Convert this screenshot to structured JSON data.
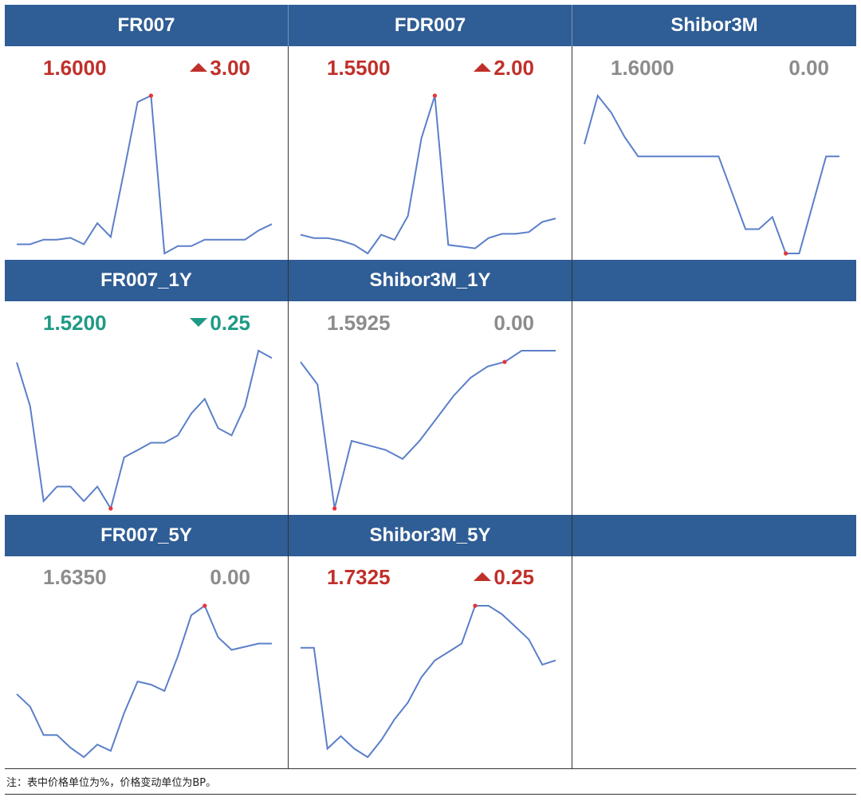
{
  "colors": {
    "header_bg": "#2f5d95",
    "up": "#c0302a",
    "down": "#1f9a86",
    "flat": "#8c8c8c",
    "line": "#5b7fc9",
    "marker": "#e8343a"
  },
  "note": "注：表中价格单位为%，价格变动单位为BP。",
  "chart_data": [
    {
      "type": "line",
      "title": "FR007",
      "value": "1.6000",
      "change": "3.00",
      "direction": "up",
      "values": [
        1.5,
        1.5,
        1.505,
        1.505,
        1.507,
        1.5,
        1.523,
        1.508,
        1.58,
        1.655,
        1.662,
        1.49,
        1.498,
        1.498,
        1.505,
        1.505,
        1.505,
        1.505,
        1.515,
        1.522
      ],
      "highlight_index": 10
    },
    {
      "type": "line",
      "title": "FDR007",
      "value": "1.5500",
      "change": "2.00",
      "direction": "up",
      "values": [
        1.512,
        1.508,
        1.508,
        1.505,
        1.5,
        1.49,
        1.512,
        1.506,
        1.534,
        1.625,
        1.675,
        1.5,
        1.498,
        1.496,
        1.508,
        1.513,
        1.513,
        1.515,
        1.527,
        1.531
      ],
      "highlight_index": 10
    },
    {
      "type": "line",
      "title": "Shibor3M",
      "value": "1.6000",
      "change": "0.00",
      "direction": "flat",
      "values": [
        1.6075,
        1.6095,
        1.6088,
        1.6078,
        1.607,
        1.607,
        1.607,
        1.607,
        1.607,
        1.607,
        1.607,
        1.6055,
        1.604,
        1.604,
        1.6045,
        1.603,
        1.603,
        1.605,
        1.607,
        1.607
      ],
      "highlight_index": 15
    },
    {
      "type": "line",
      "title": "FR007_1Y",
      "value": "1.5200",
      "change": "0.25",
      "direction": "down",
      "values": [
        1.547,
        1.544,
        1.5375,
        1.5385,
        1.5385,
        1.5375,
        1.5385,
        1.537,
        1.5405,
        1.541,
        1.5415,
        1.5415,
        1.542,
        1.5435,
        1.5445,
        1.5425,
        1.542,
        1.544,
        1.5478,
        1.5473
      ],
      "highlight_index": 7
    },
    {
      "type": "line",
      "title": "Shibor3M_1Y",
      "value": "1.5925",
      "change": "0.00",
      "direction": "flat",
      "values": [
        1.5905,
        1.5895,
        1.584,
        1.587,
        1.5868,
        1.5866,
        1.5862,
        1.587,
        1.588,
        1.589,
        1.5898,
        1.5903,
        1.5905,
        1.591,
        1.591,
        1.591
      ],
      "highlight_index": 2,
      "highlight_index_2": 12
    },
    {
      "type": "line",
      "title": "FR007_5Y",
      "value": "1.6350",
      "change": "0.00",
      "direction": "flat",
      "values": [
        1.64,
        1.636,
        1.627,
        1.627,
        1.623,
        1.62,
        1.624,
        1.622,
        1.634,
        1.644,
        1.643,
        1.641,
        1.652,
        1.665,
        1.668,
        1.658,
        1.654,
        1.655,
        1.656,
        1.656
      ],
      "highlight_index": 14
    },
    {
      "type": "line",
      "title": "Shibor3M_5Y",
      "value": "1.7325",
      "change": "0.25",
      "direction": "up",
      "values": [
        1.705,
        1.705,
        1.681,
        1.684,
        1.681,
        1.679,
        1.683,
        1.688,
        1.692,
        1.698,
        1.702,
        1.704,
        1.706,
        1.715,
        1.715,
        1.713,
        1.71,
        1.707,
        1.701,
        1.702
      ],
      "highlight_index": 13
    }
  ]
}
